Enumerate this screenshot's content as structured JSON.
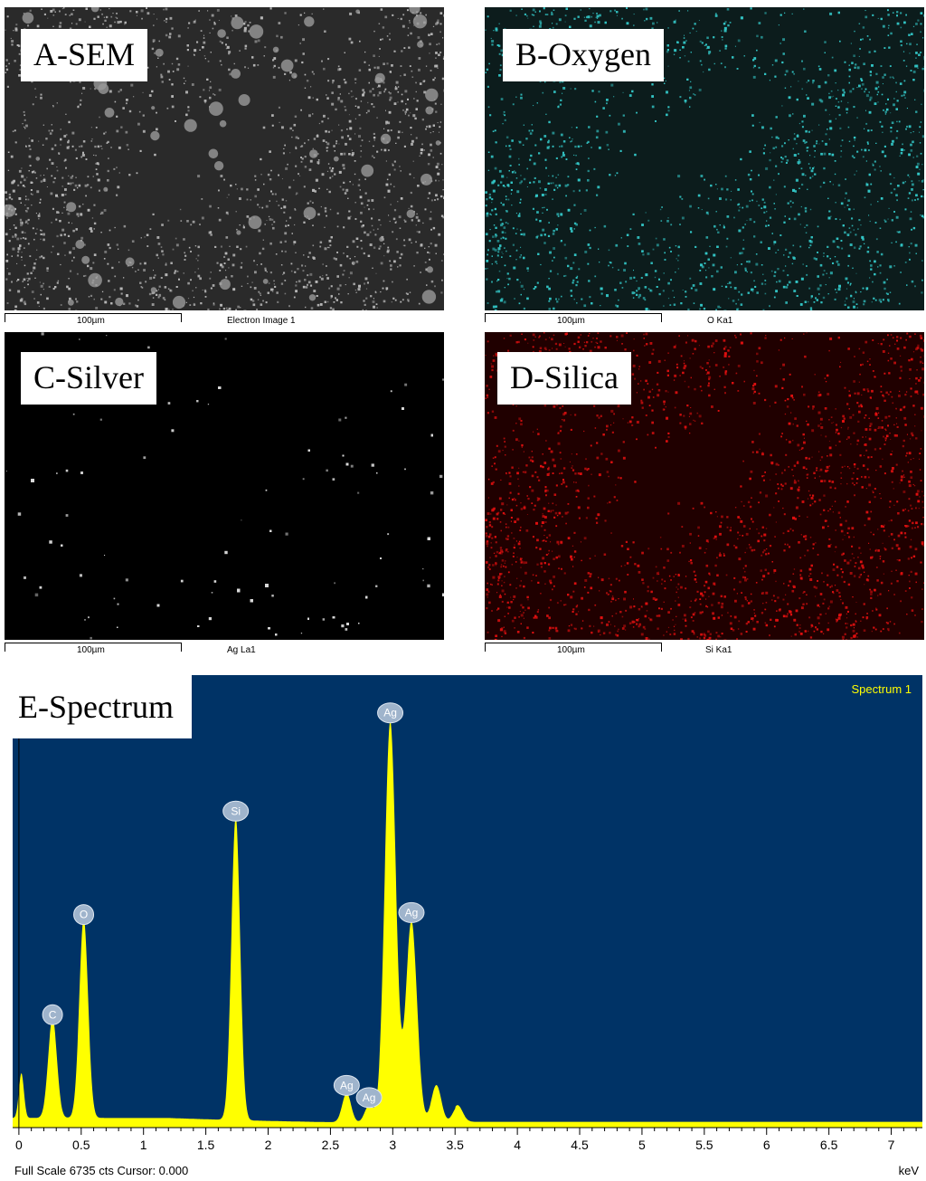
{
  "panels": [
    {
      "id": "A",
      "label": "A-SEM",
      "scale": "100µm",
      "caption": "Electron Image 1",
      "color": "#b8b8b8",
      "bg": "#2a2a2a"
    },
    {
      "id": "B",
      "label": "B-Oxygen",
      "scale": "100µm",
      "caption": "O Ka1",
      "color": "#33c6c6",
      "bg": "#0c1c1c"
    },
    {
      "id": "C",
      "label": "C-Silver",
      "scale": "100µm",
      "caption": "Ag La1",
      "color": "#d8d8d8",
      "bg": "#000000"
    },
    {
      "id": "D",
      "label": "D-Silica",
      "scale": "100µm",
      "caption": "Si Ka1",
      "color": "#e01010",
      "bg": "#200000"
    }
  ],
  "spectrum": {
    "label": "E-Spectrum",
    "legend": "Spectrum 1",
    "footer": "Full Scale 6735 cts Cursor: 0.000",
    "unit": "keV",
    "bg": "#003366",
    "fill": "#ffff00"
  },
  "chart_data": {
    "type": "area",
    "x_ticks": [
      "0",
      "0.5",
      "1",
      "1.5",
      "2",
      "2.5",
      "3",
      "3.5",
      "4",
      "4.5",
      "5",
      "5.5",
      "6",
      "6.5",
      "7"
    ],
    "xlim": [
      -0.05,
      7.25
    ],
    "peaks": [
      {
        "element": "C",
        "x": 0.27,
        "y": 1560
      },
      {
        "element": "O",
        "x": 0.52,
        "y": 3120
      },
      {
        "element": "Si",
        "x": 1.74,
        "y": 4730
      },
      {
        "element": "Ag",
        "x": 2.63,
        "y": 460
      },
      {
        "element": "Ag",
        "x": 2.81,
        "y": 270
      },
      {
        "element": "Ag",
        "x": 2.98,
        "y": 6260
      },
      {
        "element": "Ag",
        "x": 3.15,
        "y": 3150
      }
    ],
    "ylim": [
      0,
      6735
    ]
  }
}
